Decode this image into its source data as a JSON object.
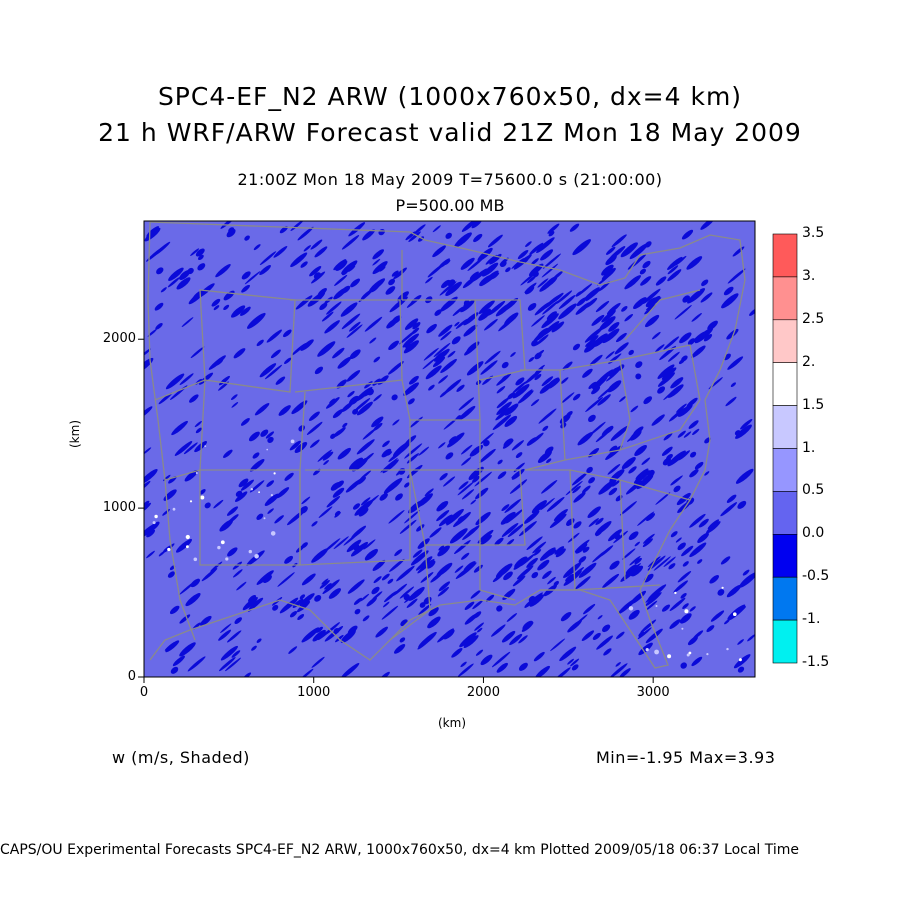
{
  "title_line1": "SPC4-EF_N2 ARW (1000x760x50, dx=4 km)",
  "title_line2": "21 h WRF/ARW Forecast valid 21Z Mon 18 May 2009",
  "subtitle_time": "21:00Z Mon 18 May 2009     T=75600.0 s (21:00:00)",
  "subtitle_level": "P=500.00 MB",
  "field_label": "w (m/s, Shaded)",
  "min_max": "Min=-1.95 Max=3.93",
  "footer": "CAPS/OU Experimental Forecasts  SPC4-EF_N2 ARW, 1000x760x50, dx=4 km  Plotted 2009/05/18 06:37 Local Time",
  "axes": {
    "x_unit": "(km)",
    "y_unit": "(km)",
    "x_ticks": [
      "0",
      "1000",
      "2000",
      "3000"
    ],
    "y_ticks": [
      "0",
      "1000",
      "2000"
    ]
  },
  "colorbar": {
    "labels": [
      "3.5",
      "3.",
      "2.5",
      "2.",
      "1.5",
      "1.",
      "0.5",
      "0.0",
      "-0.5",
      "-1.",
      "-1.5"
    ],
    "colors": [
      "#ff5a5a",
      "#ff9090",
      "#ffc8c8",
      "#ffffff",
      "#c8c8ff",
      "#9696ff",
      "#6464f0",
      "#0000f0",
      "#0078f0",
      "#00f0f0"
    ]
  },
  "map": {
    "background_color": "#6a6ae8",
    "dark_cell_color": "#0a0ad8",
    "boundary_color": "#8a8a8a"
  }
}
